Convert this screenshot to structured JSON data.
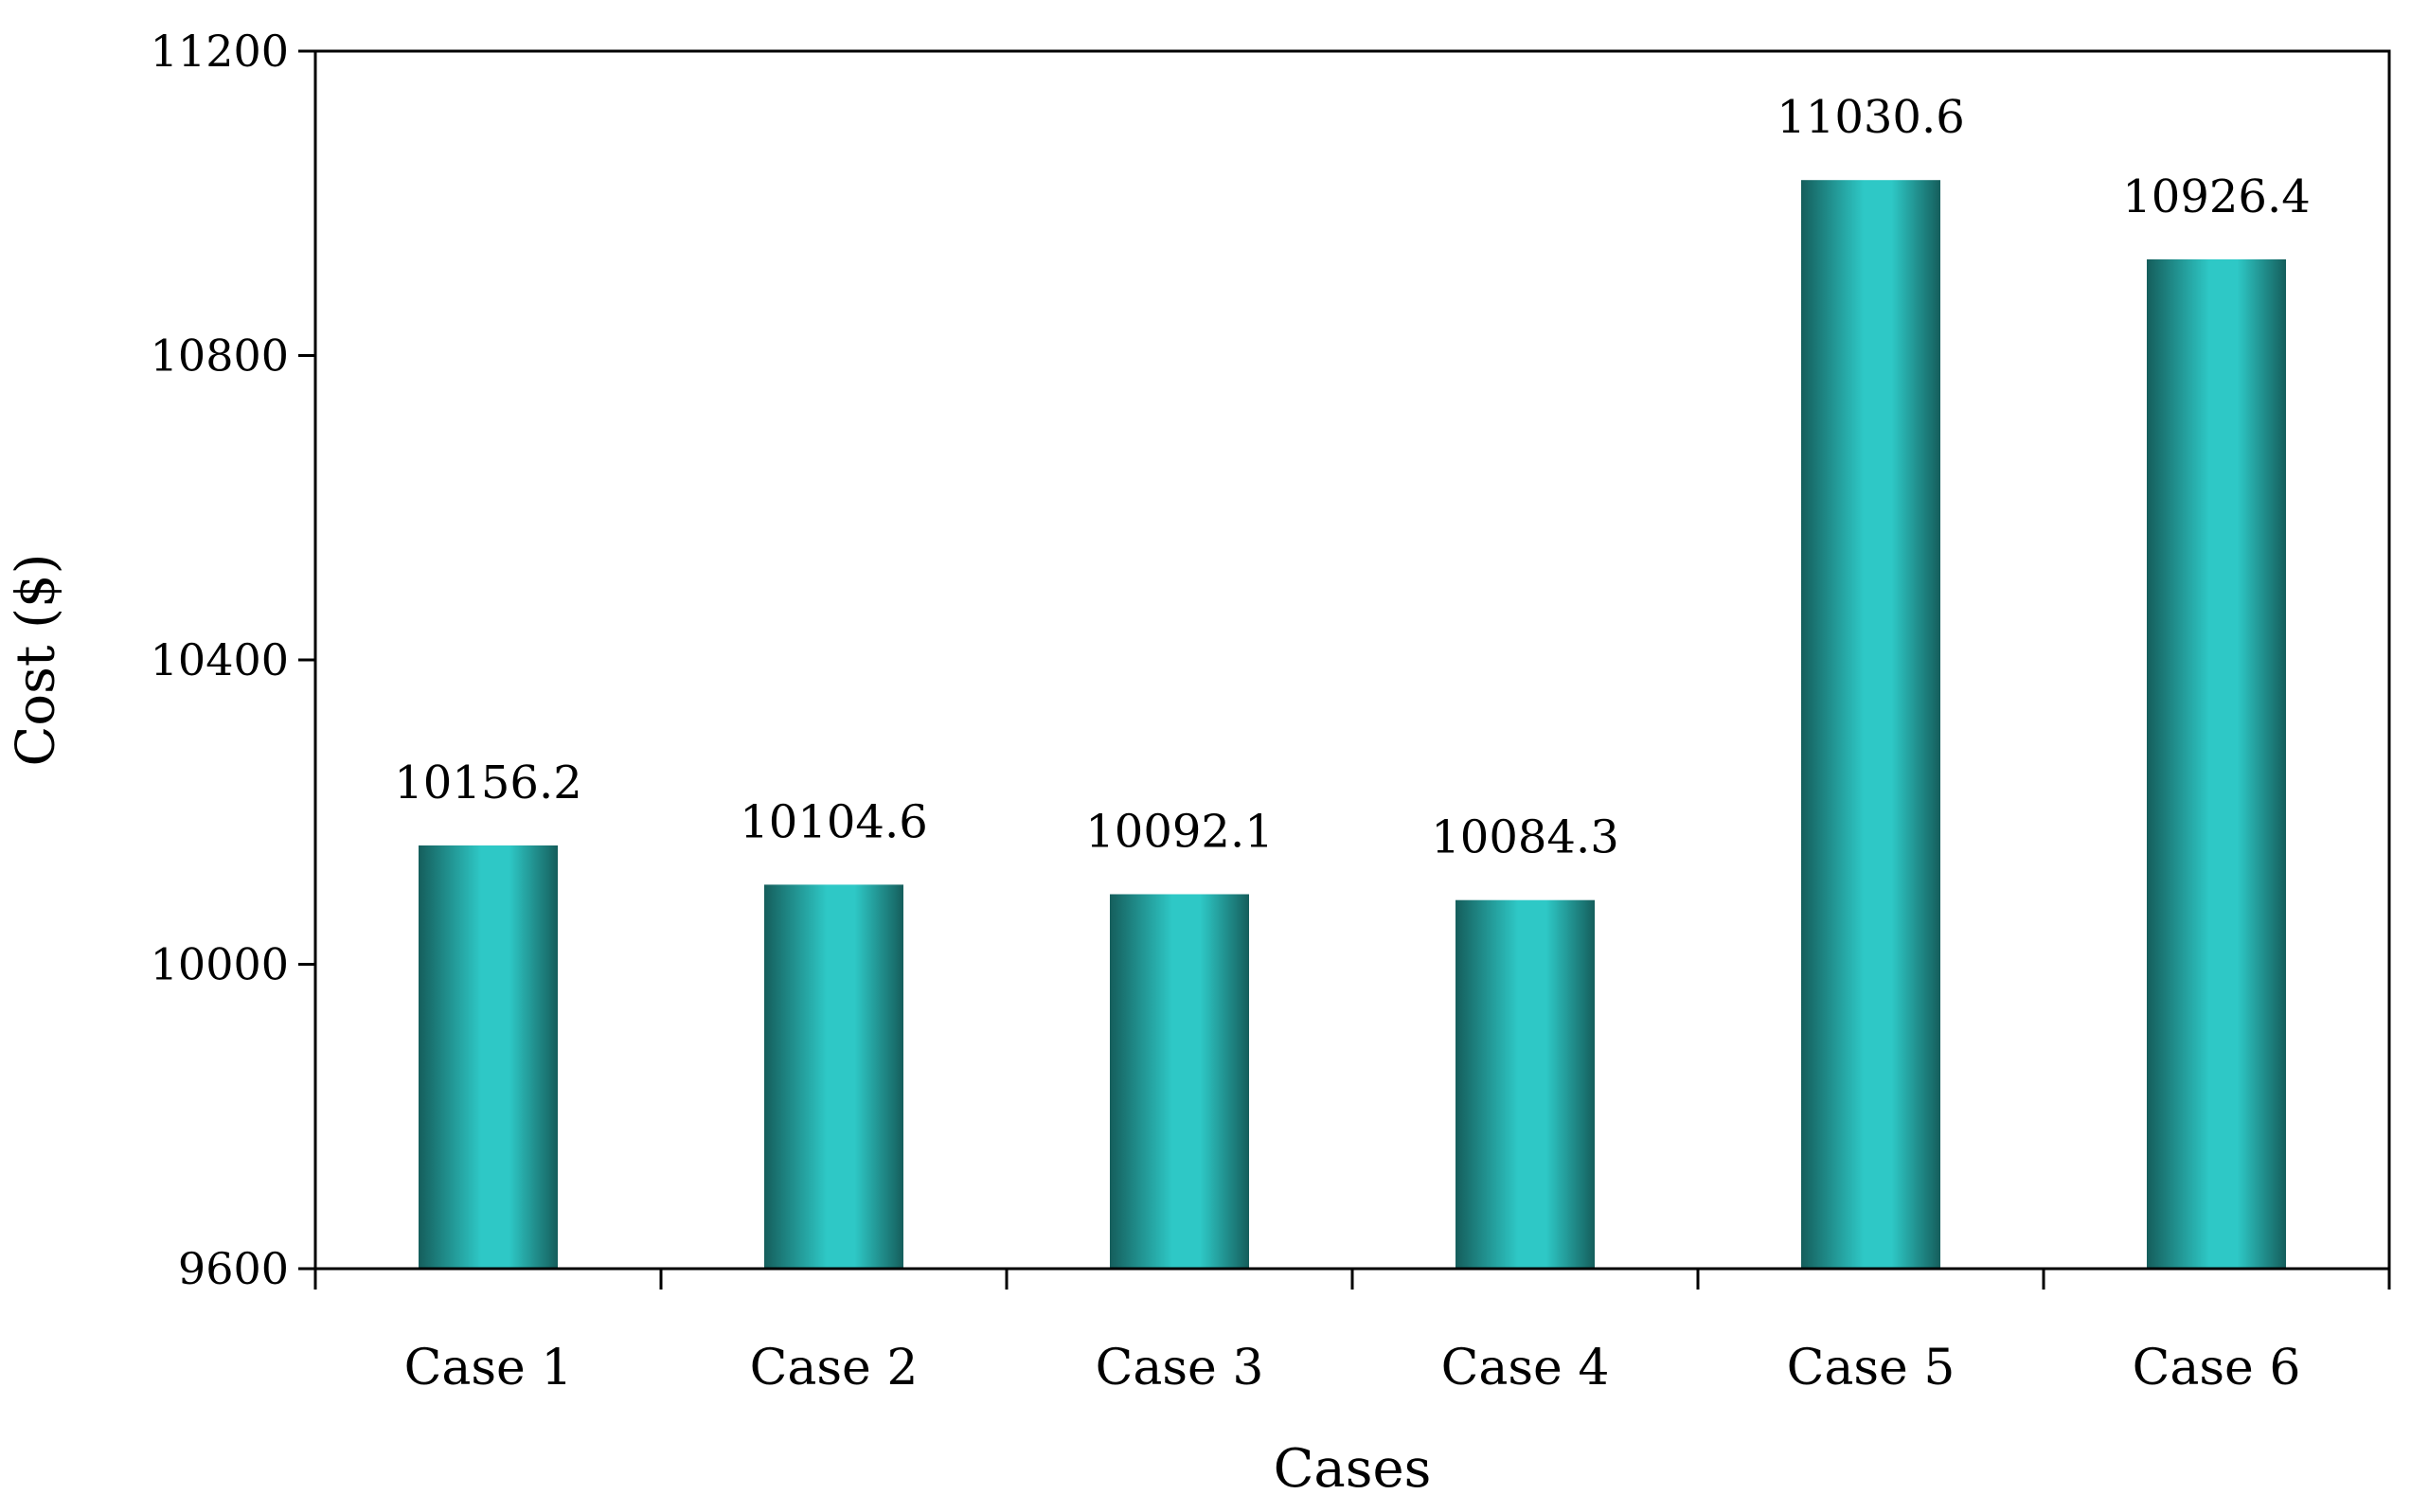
{
  "chart_data": {
    "type": "bar",
    "title": "",
    "xlabel": "Cases",
    "ylabel": "Cost ($)",
    "categories": [
      "Case 1",
      "Case 2",
      "Case 3",
      "Case 4",
      "Case 5",
      "Case 6"
    ],
    "values": [
      10156.2,
      10104.6,
      10092.1,
      10084.3,
      11030.6,
      10926.4
    ],
    "value_labels": [
      "10156.2",
      "10104.6",
      "10092.1",
      "10084.3",
      "11030.6",
      "10926.4"
    ],
    "ylim": [
      9600,
      11200
    ],
    "yticks": [
      9600,
      10000,
      10400,
      10800,
      11200
    ],
    "ytick_labels": [
      "9600",
      "10000",
      "10400",
      "10800",
      "11200"
    ],
    "grid": false,
    "legend": "none",
    "colors": {
      "bar_center": "#2ec8c6",
      "bar_edge": "#155e5c",
      "axis": "#000000"
    }
  }
}
